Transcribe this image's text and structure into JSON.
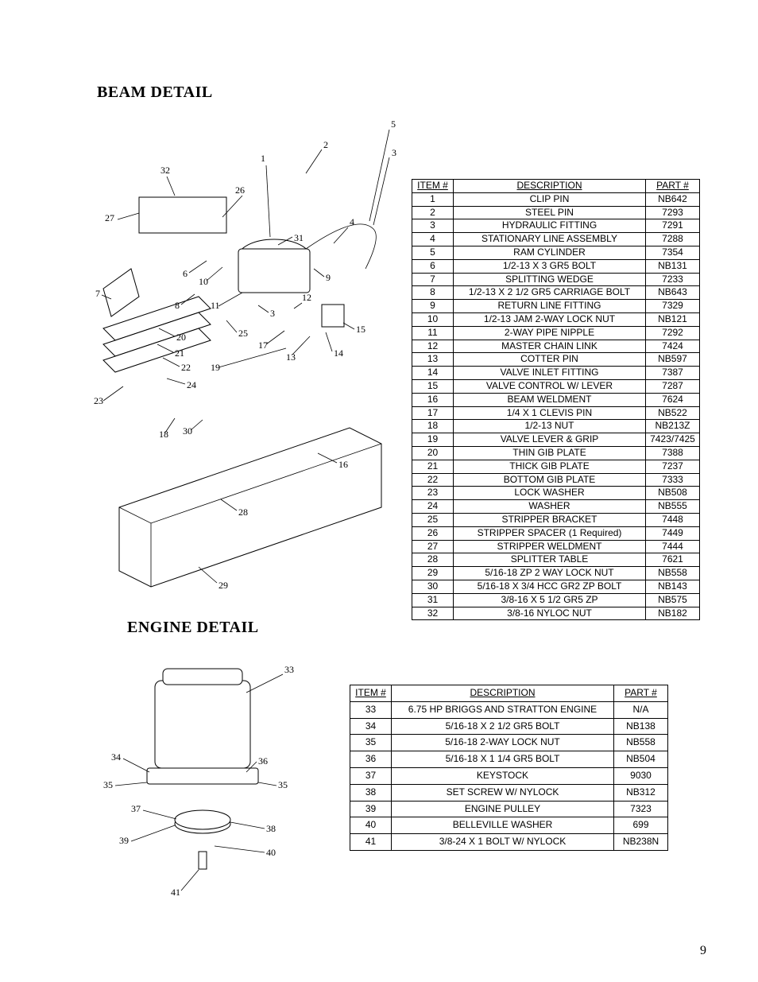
{
  "page_number": "9",
  "beam": {
    "title": "BEAM DETAIL",
    "table": {
      "headers": {
        "item": "ITEM #",
        "desc": "DESCRIPTION",
        "part": "PART #"
      },
      "rows": [
        {
          "item": "1",
          "desc": "CLIP PIN",
          "part": "NB642"
        },
        {
          "item": "2",
          "desc": "STEEL PIN",
          "part": "7293"
        },
        {
          "item": "3",
          "desc": "HYDRAULIC FITTING",
          "part": "7291"
        },
        {
          "item": "4",
          "desc": "STATIONARY LINE ASSEMBLY",
          "part": "7288"
        },
        {
          "item": "5",
          "desc": "RAM CYLINDER",
          "part": "7354"
        },
        {
          "item": "6",
          "desc": "1/2-13 X 3 GR5 BOLT",
          "part": "NB131"
        },
        {
          "item": "7",
          "desc": "SPLITTING WEDGE",
          "part": "7233"
        },
        {
          "item": "8",
          "desc": "1/2-13 X 2 1/2 GR5 CARRIAGE BOLT",
          "part": "NB643"
        },
        {
          "item": "9",
          "desc": "RETURN LINE FITTING",
          "part": "7329"
        },
        {
          "item": "10",
          "desc": "1/2-13 JAM 2-WAY LOCK NUT",
          "part": "NB121"
        },
        {
          "item": "11",
          "desc": "2-WAY PIPE NIPPLE",
          "part": "7292"
        },
        {
          "item": "12",
          "desc": "MASTER CHAIN LINK",
          "part": "7424"
        },
        {
          "item": "13",
          "desc": "COTTER PIN",
          "part": "NB597"
        },
        {
          "item": "14",
          "desc": "VALVE INLET FITTING",
          "part": "7387"
        },
        {
          "item": "15",
          "desc": "VALVE CONTROL W/ LEVER",
          "part": "7287"
        },
        {
          "item": "16",
          "desc": "BEAM WELDMENT",
          "part": "7624"
        },
        {
          "item": "17",
          "desc": "1/4 X 1 CLEVIS PIN",
          "part": "NB522"
        },
        {
          "item": "18",
          "desc": "1/2-13 NUT",
          "part": "NB213Z"
        },
        {
          "item": "19",
          "desc": "VALVE LEVER & GRIP",
          "part": "7423/7425"
        },
        {
          "item": "20",
          "desc": "THIN GIB PLATE",
          "part": "7388"
        },
        {
          "item": "21",
          "desc": "THICK GIB PLATE",
          "part": "7237"
        },
        {
          "item": "22",
          "desc": "BOTTOM GIB PLATE",
          "part": "7333"
        },
        {
          "item": "23",
          "desc": "LOCK WASHER",
          "part": "NB508"
        },
        {
          "item": "24",
          "desc": "WASHER",
          "part": "NB555"
        },
        {
          "item": "25",
          "desc": "STRIPPER BRACKET",
          "part": "7448"
        },
        {
          "item": "26",
          "desc": "STRIPPER SPACER (1 Required)",
          "part": "7449"
        },
        {
          "item": "27",
          "desc": "STRIPPER WELDMENT",
          "part": "7444"
        },
        {
          "item": "28",
          "desc": "SPLITTER TABLE",
          "part": "7621"
        },
        {
          "item": "29",
          "desc": "5/16-18 ZP 2 WAY LOCK NUT",
          "part": "NB558"
        },
        {
          "item": "30",
          "desc": "5/16-18 X 3/4 HCC GR2 ZP BOLT",
          "part": "NB143"
        },
        {
          "item": "31",
          "desc": "3/8-16 X 5 1/2 GR5 ZP",
          "part": "NB575"
        },
        {
          "item": "32",
          "desc": "3/8-16 NYLOC NUT",
          "part": "NB182"
        }
      ]
    },
    "diagram": {
      "type": "exploded-technical-drawing",
      "stroke_color": "#000000",
      "background_color": "#ffffff",
      "callout_font": "Times New Roman",
      "callout_fontsize": 12,
      "callouts": [
        "1",
        "2",
        "3",
        "3",
        "4",
        "5",
        "6",
        "7",
        "8",
        "9",
        "10",
        "11",
        "12",
        "13",
        "14",
        "15",
        "16",
        "17",
        "18",
        "19",
        "20",
        "21",
        "22",
        "23",
        "24",
        "25",
        "26",
        "27",
        "28",
        "29",
        "30",
        "31",
        "32"
      ]
    }
  },
  "engine": {
    "title": "ENGINE DETAIL",
    "table": {
      "headers": {
        "item": "ITEM #",
        "desc": "DESCRIPTION",
        "part": "PART #"
      },
      "rows": [
        {
          "item": "33",
          "desc": "6.75 HP BRIGGS AND STRATTON ENGINE",
          "part": "N/A"
        },
        {
          "item": "34",
          "desc": "5/16-18 X 2 1/2 GR5 BOLT",
          "part": "NB138"
        },
        {
          "item": "35",
          "desc": "5/16-18 2-WAY LOCK NUT",
          "part": "NB558"
        },
        {
          "item": "36",
          "desc": "5/16-18 X 1 1/4 GR5 BOLT",
          "part": "NB504"
        },
        {
          "item": "37",
          "desc": "KEYSTOCK",
          "part": "9030"
        },
        {
          "item": "38",
          "desc": "SET SCREW W/ NYLOCK",
          "part": "NB312"
        },
        {
          "item": "39",
          "desc": "ENGINE PULLEY",
          "part": "7323"
        },
        {
          "item": "40",
          "desc": "BELLEVILLE WASHER",
          "part": "699"
        },
        {
          "item": "41",
          "desc": "3/8-24 X 1 BOLT W/ NYLOCK",
          "part": "NB238N"
        }
      ]
    },
    "diagram": {
      "type": "exploded-technical-drawing",
      "stroke_color": "#000000",
      "background_color": "#ffffff",
      "callout_font": "Times New Roman",
      "callout_fontsize": 12,
      "callouts": [
        "33",
        "34",
        "35",
        "35",
        "36",
        "37",
        "38",
        "39",
        "40",
        "41"
      ]
    }
  },
  "styling": {
    "page_bg": "#ffffff",
    "text_color": "#000000",
    "table_border_color": "#000000",
    "title_font": "Times New Roman",
    "title_fontsize_pt": 15,
    "body_font": "Arial",
    "table_fontsize_pt": 9
  }
}
